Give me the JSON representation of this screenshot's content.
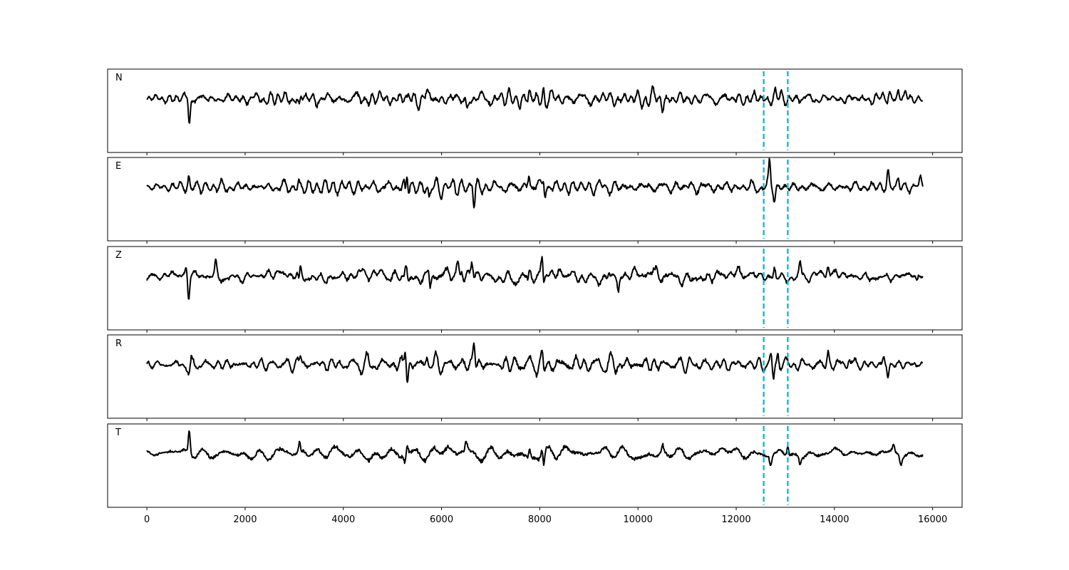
{
  "chart_data": {
    "type": "line",
    "title": "",
    "xlabel": "",
    "ylabel": "",
    "xlim": [
      -800,
      16600
    ],
    "x_ticks": [
      0,
      2000,
      4000,
      6000,
      8000,
      10000,
      12000,
      14000,
      16000
    ],
    "x_tick_labels": [
      "0",
      "2000",
      "4000",
      "6000",
      "8000",
      "10000",
      "12000",
      "14000",
      "16000"
    ],
    "sample_range": [
      0,
      15800
    ],
    "grid": false,
    "line_color": "#000000",
    "marker_color": "#17becf",
    "markers": [
      12560,
      13050
    ],
    "marker_style": "dashed vertical",
    "panels": [
      {
        "label": "N",
        "spikes": [
          [
            860,
            -1.0
          ],
          [
            840,
            0.3
          ],
          [
            3120,
            0.45
          ],
          [
            3110,
            -0.6
          ],
          [
            5260,
            0.2
          ],
          [
            5290,
            -0.2
          ],
          [
            5700,
            0.2
          ],
          [
            6520,
            -0.4
          ],
          [
            7780,
            0.45
          ],
          [
            7770,
            -0.4
          ],
          [
            8080,
            0.5
          ],
          [
            8100,
            -0.3
          ],
          [
            10500,
            -0.3
          ],
          [
            12800,
            0.25
          ],
          [
            15120,
            0.25
          ],
          [
            15300,
            0.25
          ],
          [
            15450,
            0.2
          ]
        ]
      },
      {
        "label": "E",
        "spikes": [
          [
            860,
            0.55
          ],
          [
            870,
            -0.3
          ],
          [
            3100,
            0.25
          ],
          [
            3120,
            -0.25
          ],
          [
            5240,
            0.35
          ],
          [
            5260,
            -0.4
          ],
          [
            5300,
            0.65
          ],
          [
            5320,
            -0.4
          ],
          [
            5750,
            -0.45
          ],
          [
            6660,
            -0.75
          ],
          [
            6640,
            0.25
          ],
          [
            7780,
            0.5
          ],
          [
            8080,
            0.45
          ],
          [
            8100,
            -0.3
          ],
          [
            12680,
            0.85
          ],
          [
            12780,
            -0.45
          ],
          [
            15090,
            0.5
          ],
          [
            15300,
            0.3
          ],
          [
            15750,
            0.3
          ]
        ]
      },
      {
        "label": "Z",
        "spikes": [
          [
            850,
            -0.85
          ],
          [
            800,
            0.2
          ],
          [
            1400,
            0.45
          ],
          [
            3120,
            0.85
          ],
          [
            3110,
            -0.8
          ],
          [
            5280,
            0.55
          ],
          [
            5740,
            0.45
          ],
          [
            5760,
            -0.45
          ],
          [
            6330,
            0.45
          ],
          [
            6460,
            -0.4
          ],
          [
            6620,
            0.5
          ],
          [
            7780,
            0.45
          ],
          [
            7770,
            -0.55
          ],
          [
            8050,
            0.6
          ],
          [
            8080,
            -0.55
          ],
          [
            9600,
            -0.45
          ],
          [
            9400,
            0.25
          ],
          [
            12780,
            0.4
          ],
          [
            13300,
            0.4
          ],
          [
            13870,
            0.35
          ],
          [
            15680,
            -0.25
          ]
        ]
      },
      {
        "label": "R",
        "spikes": [
          [
            860,
            -0.35
          ],
          [
            3130,
            0.3
          ],
          [
            5260,
            0.35
          ],
          [
            5300,
            -0.7
          ],
          [
            5270,
            0.3
          ],
          [
            5700,
            0.3
          ],
          [
            6660,
            0.8
          ],
          [
            7780,
            0.3
          ],
          [
            7770,
            -0.3
          ],
          [
            8050,
            0.35
          ],
          [
            8080,
            -0.35
          ],
          [
            12700,
            0.3
          ],
          [
            12760,
            -0.7
          ],
          [
            12850,
            0.55
          ],
          [
            13870,
            0.35
          ],
          [
            14300,
            0.3
          ],
          [
            15090,
            -0.5
          ],
          [
            15000,
            0.3
          ]
        ]
      },
      {
        "label": "T",
        "spikes": [
          [
            860,
            1.05
          ],
          [
            850,
            -0.3
          ],
          [
            3120,
            0.6
          ],
          [
            3130,
            -0.4
          ],
          [
            5300,
            0.35
          ],
          [
            5260,
            -0.25
          ],
          [
            6500,
            0.35
          ],
          [
            7780,
            0.55
          ],
          [
            7770,
            -0.35
          ],
          [
            8080,
            -0.5
          ],
          [
            8050,
            0.3
          ],
          [
            10500,
            0.3
          ],
          [
            12700,
            -0.3
          ],
          [
            13050,
            0.3
          ],
          [
            13300,
            -0.25
          ],
          [
            15350,
            -0.3
          ],
          [
            15200,
            0.25
          ]
        ]
      }
    ]
  }
}
